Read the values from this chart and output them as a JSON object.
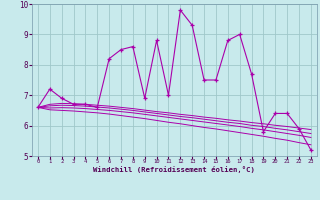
{
  "x": [
    0,
    1,
    2,
    3,
    4,
    5,
    6,
    7,
    8,
    9,
    10,
    11,
    12,
    13,
    14,
    15,
    16,
    17,
    18,
    19,
    20,
    21,
    22,
    23
  ],
  "main_line": [
    6.6,
    7.2,
    6.9,
    6.7,
    6.7,
    6.6,
    8.2,
    8.5,
    8.6,
    6.9,
    8.8,
    7.0,
    9.8,
    9.3,
    7.5,
    7.5,
    8.8,
    9.0,
    7.7,
    5.8,
    6.4,
    6.4,
    5.9,
    5.2
  ],
  "trend1": [
    6.6,
    6.7,
    6.73,
    6.72,
    6.7,
    6.67,
    6.64,
    6.6,
    6.56,
    6.51,
    6.46,
    6.42,
    6.37,
    6.33,
    6.28,
    6.24,
    6.19,
    6.15,
    6.1,
    6.06,
    6.01,
    5.97,
    5.92,
    5.87
  ],
  "trend2": [
    6.6,
    6.65,
    6.67,
    6.66,
    6.64,
    6.61,
    6.58,
    6.54,
    6.5,
    6.45,
    6.4,
    6.35,
    6.3,
    6.26,
    6.21,
    6.16,
    6.11,
    6.07,
    6.01,
    5.97,
    5.91,
    5.86,
    5.8,
    5.74
  ],
  "trend3": [
    6.6,
    6.58,
    6.59,
    6.58,
    6.56,
    6.53,
    6.5,
    6.46,
    6.42,
    6.37,
    6.32,
    6.27,
    6.22,
    6.17,
    6.12,
    6.07,
    6.02,
    5.97,
    5.91,
    5.86,
    5.8,
    5.74,
    5.68,
    5.61
  ],
  "trend4": [
    6.6,
    6.52,
    6.5,
    6.48,
    6.45,
    6.42,
    6.38,
    6.33,
    6.28,
    6.23,
    6.17,
    6.11,
    6.06,
    6.0,
    5.94,
    5.89,
    5.83,
    5.77,
    5.71,
    5.65,
    5.58,
    5.52,
    5.44,
    5.37
  ],
  "line_color": "#aa00aa",
  "bg_color": "#c8eaec",
  "grid_color": "#a0c8ca",
  "xlabel": "Windchill (Refroidissement éolien,°C)",
  "xlim": [
    0,
    23
  ],
  "ylim": [
    5,
    10
  ],
  "yticks": [
    5,
    6,
    7,
    8,
    9,
    10
  ],
  "xticks": [
    0,
    1,
    2,
    3,
    4,
    5,
    6,
    7,
    8,
    9,
    10,
    11,
    12,
    13,
    14,
    15,
    16,
    17,
    18,
    19,
    20,
    21,
    22,
    23
  ]
}
